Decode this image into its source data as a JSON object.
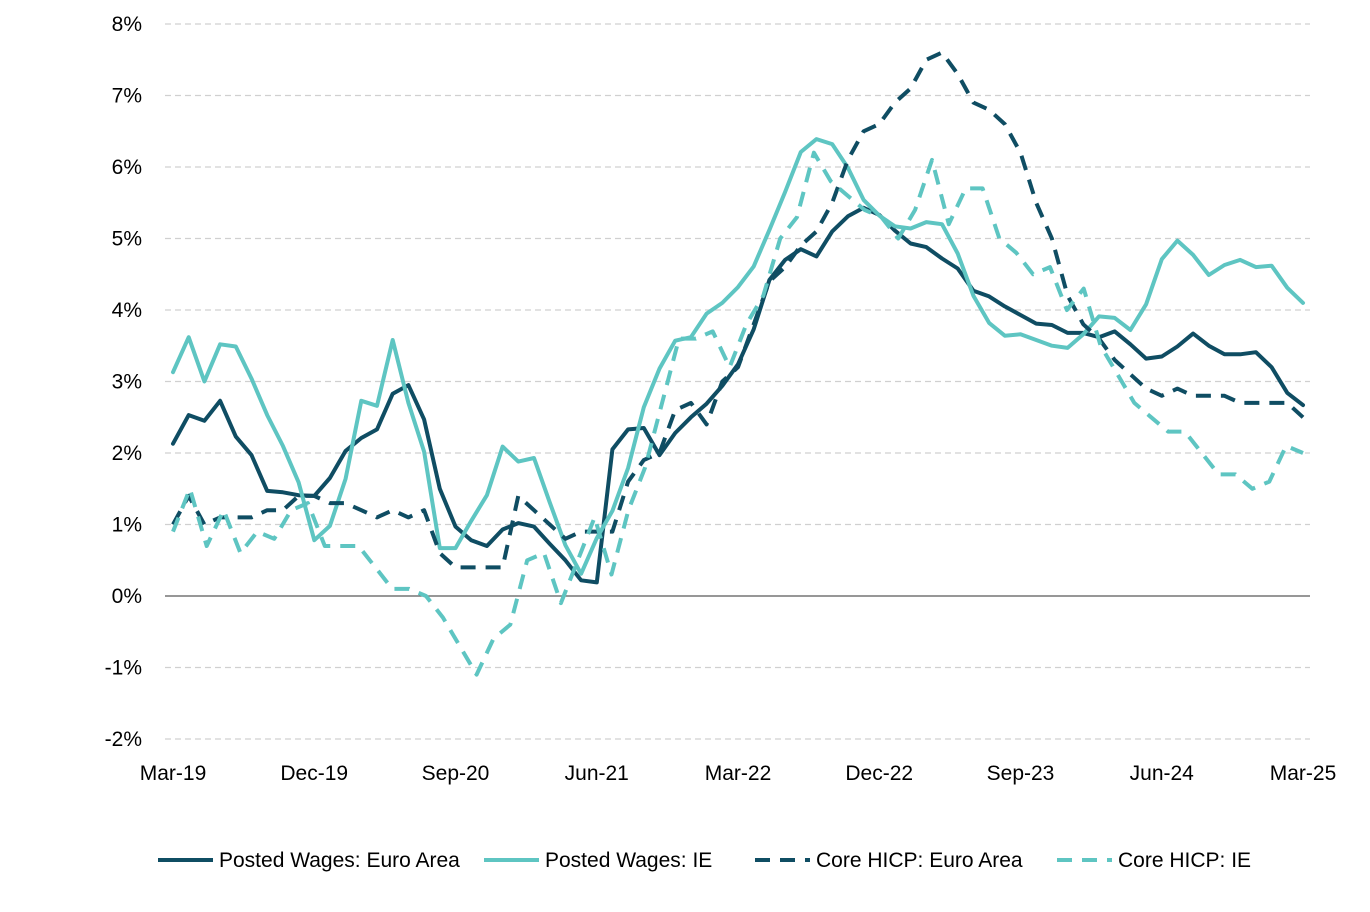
{
  "chart_data": {
    "type": "line",
    "title": "",
    "xlabel": "",
    "ylabel": "",
    "ylim": [
      -2,
      8
    ],
    "y_ticks": [
      "-2%",
      "-1%",
      "0%",
      "1%",
      "2%",
      "3%",
      "4%",
      "5%",
      "6%",
      "7%",
      "8%"
    ],
    "x_tick_labels": [
      "Mar-19",
      "Dec-19",
      "Sep-20",
      "Jun-21",
      "Mar-22",
      "Dec-22",
      "Sep-23",
      "Jun-24",
      "Mar-25"
    ],
    "grid": "horizontal",
    "legend_position": "bottom",
    "x_start": "Mar-19",
    "x_end": "Mar-25",
    "series": [
      {
        "name": "Posted Wages: Euro Area",
        "color": "#0f4d63",
        "dash": "solid",
        "values": [
          2.13,
          2.53,
          2.45,
          2.73,
          2.23,
          1.97,
          1.47,
          1.45,
          1.41,
          1.4,
          1.65,
          2.03,
          2.21,
          2.33,
          2.83,
          2.95,
          2.47,
          1.5,
          0.97,
          0.78,
          0.7,
          0.93,
          1.02,
          0.97,
          0.73,
          0.5,
          0.22,
          0.19,
          2.05,
          2.33,
          2.35,
          1.97,
          2.28,
          2.5,
          2.69,
          2.94,
          3.24,
          3.73,
          4.42,
          4.7,
          4.85,
          4.75,
          5.1,
          5.31,
          5.43,
          5.33,
          5.11,
          4.93,
          4.88,
          4.72,
          4.58,
          4.27,
          4.19,
          4.05,
          3.93,
          3.81,
          3.79,
          3.68,
          3.68,
          3.62,
          3.7,
          3.52,
          3.32,
          3.35,
          3.49,
          3.67,
          3.5,
          3.38,
          3.38,
          3.41,
          3.2,
          2.84,
          2.67
        ]
      },
      {
        "name": "Posted Wages: IE",
        "color": "#5ec5c2",
        "dash": "solid",
        "values": [
          3.13,
          3.62,
          3.0,
          3.52,
          3.49,
          3.04,
          2.53,
          2.1,
          1.59,
          0.78,
          0.98,
          1.64,
          2.73,
          2.66,
          3.58,
          2.7,
          2.02,
          0.67,
          0.67,
          1.05,
          1.41,
          2.09,
          1.88,
          1.93,
          1.31,
          0.71,
          0.31,
          0.81,
          1.19,
          1.79,
          2.64,
          3.18,
          3.57,
          3.62,
          3.95,
          4.1,
          4.32,
          4.61,
          5.12,
          5.65,
          6.21,
          6.39,
          6.32,
          5.99,
          5.54,
          5.32,
          5.17,
          5.14,
          5.23,
          5.2,
          4.79,
          4.2,
          3.82,
          3.64,
          3.66,
          3.58,
          3.5,
          3.47,
          3.66,
          3.91,
          3.89,
          3.72,
          4.08,
          4.71,
          4.97,
          4.77,
          4.49,
          4.63,
          4.7,
          4.6,
          4.62,
          4.31,
          4.1
        ]
      },
      {
        "name": "Core HICP: Euro Area",
        "color": "#0f4d63",
        "dash": "dashed",
        "values": [
          1.0,
          1.4,
          1.0,
          1.1,
          1.1,
          1.1,
          1.2,
          1.2,
          1.4,
          1.4,
          1.3,
          1.3,
          1.2,
          1.1,
          1.2,
          1.1,
          1.2,
          0.6,
          0.4,
          0.4,
          0.4,
          0.4,
          1.4,
          1.2,
          1.0,
          0.8,
          0.9,
          0.9,
          0.9,
          1.6,
          1.9,
          2.0,
          2.6,
          2.7,
          2.4,
          3.0,
          3.2,
          3.8,
          4.4,
          4.6,
          4.9,
          5.1,
          5.5,
          6.1,
          6.5,
          6.6,
          6.9,
          7.1,
          7.5,
          7.6,
          7.3,
          6.9,
          6.8,
          6.6,
          6.2,
          5.5,
          5.0,
          4.2,
          3.8,
          3.6,
          3.3,
          3.1,
          2.9,
          2.8,
          2.9,
          2.8,
          2.8,
          2.8,
          2.7,
          2.7,
          2.7,
          2.7,
          2.5
        ]
      },
      {
        "name": "Core HICP: IE",
        "color": "#5ec5c2",
        "dash": "dashed",
        "values": [
          0.9,
          1.5,
          0.7,
          1.2,
          0.6,
          0.9,
          0.8,
          1.2,
          1.3,
          0.7,
          0.7,
          0.7,
          0.4,
          0.1,
          0.1,
          0.0,
          -0.3,
          -0.7,
          -1.1,
          -0.6,
          -0.4,
          0.5,
          0.6,
          -0.1,
          0.5,
          1.1,
          0.3,
          1.2,
          1.8,
          2.7,
          3.6,
          3.6,
          3.7,
          3.2,
          3.8,
          4.2,
          5.0,
          5.3,
          6.2,
          5.8,
          5.6,
          5.4,
          5.3,
          5.0,
          5.4,
          6.1,
          5.2,
          5.7,
          5.7,
          5.0,
          4.8,
          4.5,
          4.6,
          4.0,
          4.3,
          3.5,
          3.1,
          2.7,
          2.5,
          2.3,
          2.3,
          2.0,
          1.7,
          1.7,
          1.5,
          1.6,
          2.1,
          2.0
        ]
      }
    ]
  }
}
